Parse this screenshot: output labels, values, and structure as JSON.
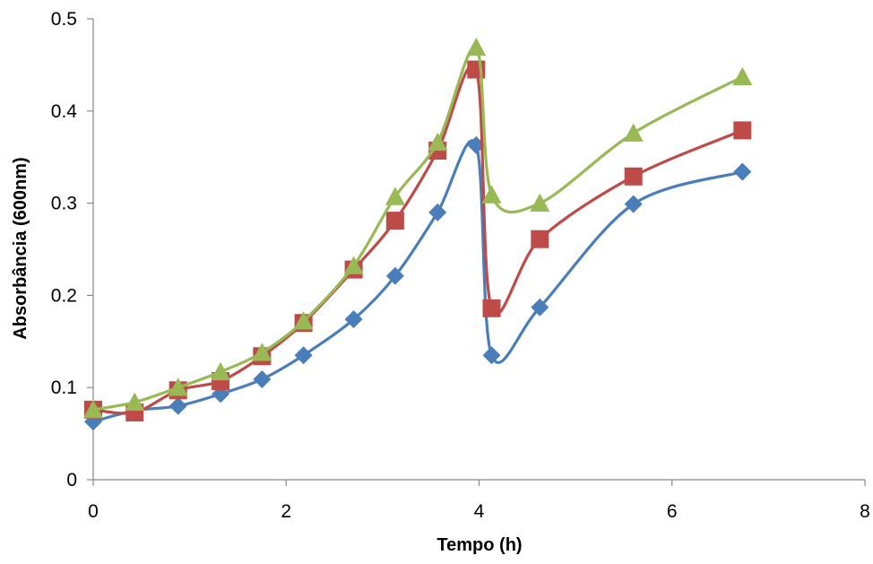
{
  "chart_data": {
    "type": "line",
    "title": "",
    "xlabel": "Tempo (h)",
    "ylabel": "Absorbância (600nm)",
    "xlim": [
      0,
      8
    ],
    "ylim": [
      0,
      0.5
    ],
    "xticks": [
      0,
      2,
      4,
      6,
      8
    ],
    "yticks": [
      0,
      0.1,
      0.2,
      0.3,
      0.4,
      0.5
    ],
    "grid": false,
    "legend": "none",
    "smooth": true,
    "series": [
      {
        "color": "#4a7ebb",
        "marker": "diamond",
        "x": [
          0,
          0.43,
          0.88,
          1.32,
          1.75,
          2.18,
          2.7,
          3.13,
          3.57,
          3.97,
          4.13,
          4.63,
          5.6,
          6.73
        ],
        "y": [
          0.063,
          0.075,
          0.08,
          0.093,
          0.109,
          0.135,
          0.174,
          0.221,
          0.29,
          0.363,
          0.135,
          0.187,
          0.299,
          0.334
        ]
      },
      {
        "color": "#be4b48",
        "marker": "square",
        "x": [
          0,
          0.43,
          0.88,
          1.32,
          1.75,
          2.18,
          2.7,
          3.13,
          3.57,
          3.97,
          4.13,
          4.63,
          5.6,
          6.73
        ],
        "y": [
          0.076,
          0.073,
          0.097,
          0.107,
          0.134,
          0.17,
          0.228,
          0.281,
          0.357,
          0.445,
          0.186,
          0.261,
          0.329,
          0.379
        ]
      },
      {
        "color": "#98b954",
        "marker": "triangle",
        "x": [
          0,
          0.43,
          0.88,
          1.32,
          1.75,
          2.18,
          2.7,
          3.13,
          3.57,
          3.97,
          4.13,
          4.63,
          5.6,
          6.73
        ],
        "y": [
          0.076,
          0.084,
          0.1,
          0.117,
          0.138,
          0.172,
          0.232,
          0.307,
          0.366,
          0.469,
          0.309,
          0.3,
          0.376,
          0.437
        ]
      }
    ]
  }
}
